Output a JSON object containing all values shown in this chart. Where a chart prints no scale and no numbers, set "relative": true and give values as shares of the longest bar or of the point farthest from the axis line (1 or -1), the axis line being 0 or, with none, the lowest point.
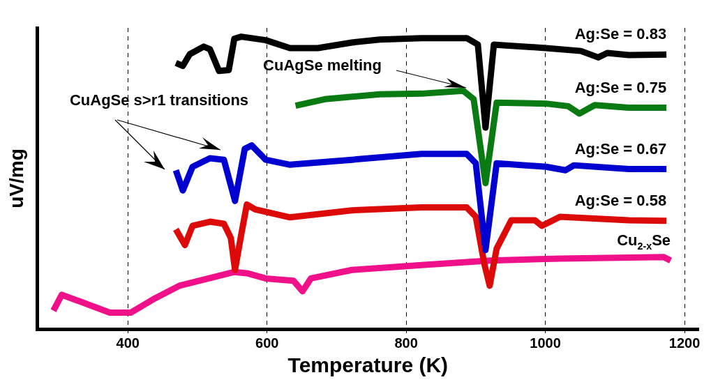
{
  "chart_data": {
    "type": "line",
    "xlabel": "Temperature (K)",
    "ylabel": "uV/mg",
    "relative": true,
    "xlim": [
      270,
      1220
    ],
    "xticks": [
      400,
      600,
      800,
      1000,
      1200
    ],
    "grid": "x",
    "legend": false,
    "marker": "none",
    "line_style": "solid",
    "annotations": [
      "CuAgSe melting",
      "CuAgSe s>r1 transitions"
    ],
    "series": [
      {
        "name": "Ag:Se = 0.83",
        "color": "#000000",
        "x": [
          469,
          479,
          489,
          509,
          518,
          531,
          545,
          553,
          563,
          598,
          633,
          673,
          722,
          762,
          822,
          887,
          903,
          914,
          926,
          936,
          1001,
          1051,
          1076,
          1089,
          1120,
          1174
        ],
        "values": [
          0.91,
          0.9,
          0.94,
          0.966,
          0.957,
          0.883,
          0.886,
          0.993,
          1.0,
          0.988,
          0.961,
          0.961,
          0.98,
          0.99,
          0.995,
          0.995,
          0.973,
          0.689,
          0.973,
          0.971,
          0.961,
          0.951,
          0.929,
          0.944,
          0.937,
          0.939
        ]
      },
      {
        "name": "Ag:Se = 0.75",
        "color": "#0a7a12",
        "x": [
          641,
          683,
          762,
          822,
          882,
          897,
          914,
          930,
          1001,
          1033,
          1049,
          1071,
          1120,
          1174
        ],
        "values": [
          0.764,
          0.786,
          0.803,
          0.805,
          0.815,
          0.786,
          0.499,
          0.774,
          0.771,
          0.762,
          0.737,
          0.766,
          0.757,
          0.757
        ]
      },
      {
        "name": "Ag:Se = 0.67",
        "color": "#0000d0",
        "x": [
          469,
          479,
          493,
          518,
          538,
          554,
          568,
          578,
          598,
          633,
          722,
          822,
          887,
          900,
          914,
          930,
          1001,
          1029,
          1041,
          1120,
          1174
        ],
        "values": [
          0.543,
          0.474,
          0.555,
          0.584,
          0.579,
          0.438,
          0.616,
          0.628,
          0.579,
          0.562,
          0.579,
          0.599,
          0.599,
          0.567,
          0.27,
          0.567,
          0.555,
          0.543,
          0.56,
          0.547,
          0.547
        ]
      },
      {
        "name": "Ag:Se = 0.58",
        "color": "#dd0a0a",
        "x": [
          469,
          482,
          493,
          518,
          538,
          548,
          554,
          563,
          571,
          583,
          633,
          722,
          822,
          887,
          900,
          912,
          920,
          930,
          951,
          985,
          995,
          1021,
          1120,
          1174
        ],
        "values": [
          0.341,
          0.287,
          0.353,
          0.367,
          0.36,
          0.311,
          0.202,
          0.324,
          0.426,
          0.409,
          0.382,
          0.406,
          0.416,
          0.416,
          0.384,
          0.226,
          0.148,
          0.275,
          0.372,
          0.372,
          0.353,
          0.384,
          0.372,
          0.37
        ]
      },
      {
        "name": "Cu$_{2-x}$Se",
        "color": "#f0108a",
        "x": [
          293,
          305,
          334,
          374,
          404,
          439,
          474,
          524,
          553,
          573,
          598,
          638,
          651,
          663,
          722,
          822,
          921,
          1021,
          1170,
          1180
        ],
        "values": [
          0.063,
          0.117,
          0.092,
          0.056,
          0.056,
          0.105,
          0.148,
          0.178,
          0.195,
          0.19,
          0.173,
          0.165,
          0.129,
          0.173,
          0.202,
          0.219,
          0.234,
          0.241,
          0.246,
          0.234
        ]
      }
    ]
  }
}
